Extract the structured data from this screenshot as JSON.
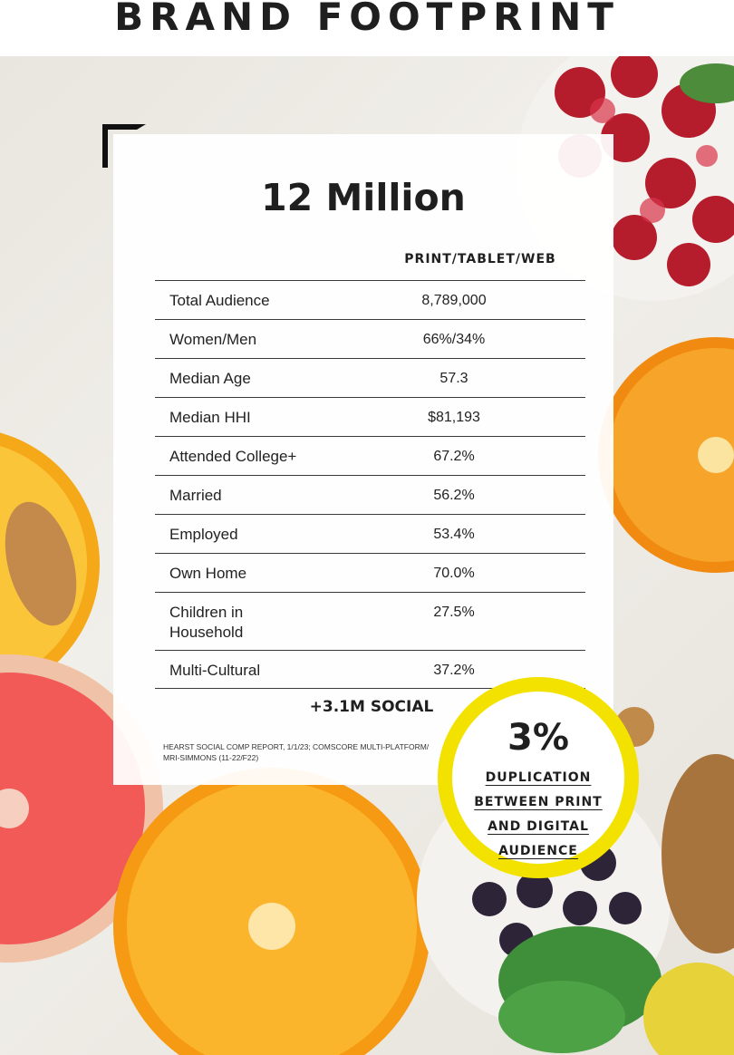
{
  "header": {
    "title": "BRAND FOOTPRINT"
  },
  "card": {
    "headline": "12 Million",
    "column_header": "PRINT/TABLET/WEB",
    "rows": [
      {
        "label": "Total Audience",
        "value": "8,789,000"
      },
      {
        "label": "Women/Men",
        "value": "66%/34%"
      },
      {
        "label": "Median Age",
        "value": "57.3"
      },
      {
        "label": "Median HHI",
        "value": "$81,193"
      },
      {
        "label": "Attended College+",
        "value": "67.2%"
      },
      {
        "label": "Married",
        "value": "56.2%"
      },
      {
        "label": "Employed",
        "value": "53.4%"
      },
      {
        "label": "Own Home",
        "value": "70.0%"
      },
      {
        "label": "Children in Household",
        "value": "27.5%"
      },
      {
        "label": "Multi-Cultural",
        "value": "37.2%"
      }
    ],
    "social": "+3.1M SOCIAL",
    "source": "HEARST SOCIAL COMP REPORT, 1/1/23; COMSCORE MULTI-PLATFORM/ MRI-SIMMONS (11-22/F22)"
  },
  "badge": {
    "percent": "3%",
    "lines": [
      "DUPLICATION",
      "BETWEEN PRINT",
      "AND DIGITAL",
      "AUDIENCE"
    ]
  },
  "colors": {
    "badge_ring": "#f3e200",
    "text": "#1f1f1f"
  }
}
